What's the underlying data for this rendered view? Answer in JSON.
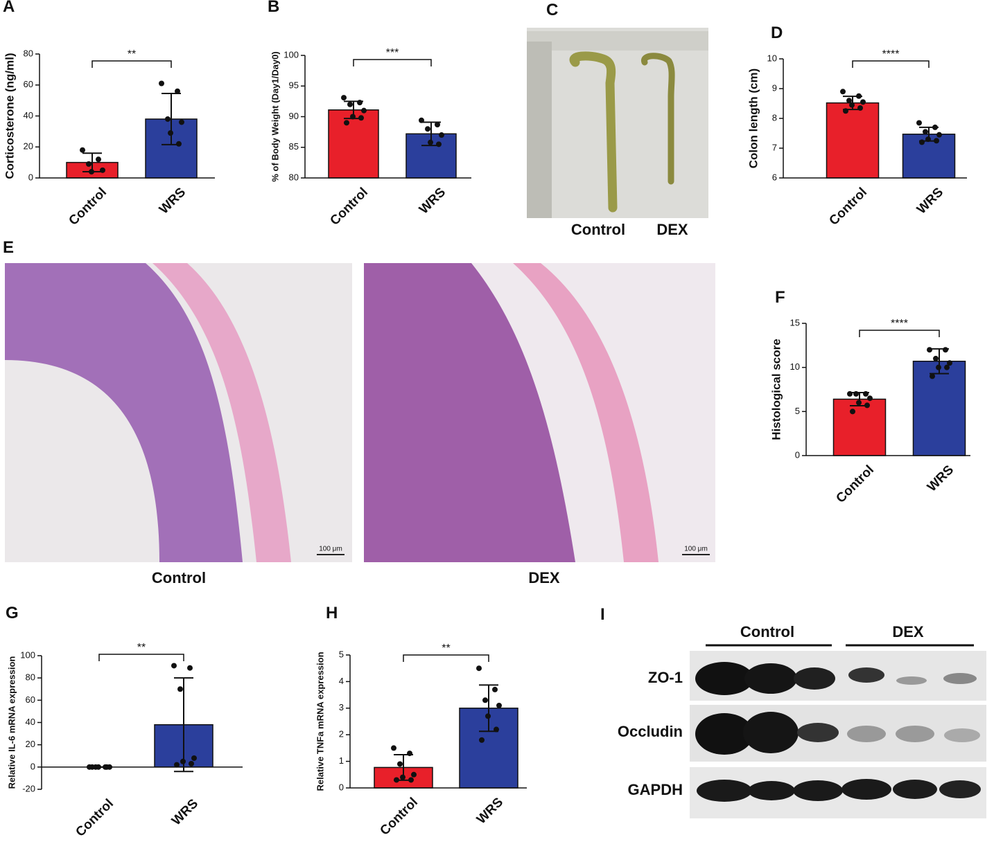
{
  "chart_data": [
    {
      "type": "bar",
      "panel": "A",
      "ylabel": "Corticosterone (ng/ml)",
      "categories": [
        "Control",
        "WRS"
      ],
      "values": [
        10,
        38
      ],
      "errors": [
        6,
        16.5
      ],
      "points": [
        [
          18,
          12,
          9,
          5,
          4
        ],
        [
          61,
          56,
          38,
          36,
          29,
          22
        ]
      ],
      "colors": [
        "#e8202a",
        "#2b3f9c"
      ],
      "annotation": "**",
      "ylim": [
        0,
        80
      ],
      "yticks": [
        0,
        20,
        40,
        60,
        80
      ]
    },
    {
      "type": "bar",
      "panel": "B",
      "ylabel": "% of Body Weight (Day1/Day0)",
      "categories": [
        "Control",
        "WRS"
      ],
      "values": [
        91.1,
        87.2
      ],
      "errors": [
        1.4,
        1.9
      ],
      "points": [
        [
          93.1,
          92.3,
          92,
          91,
          90,
          89.8,
          89
        ],
        [
          89.4,
          88.7,
          88,
          87,
          85.8,
          85.5
        ]
      ],
      "colors": [
        "#e8202a",
        "#2b3f9c"
      ],
      "annotation": "***",
      "ylim": [
        80,
        100
      ],
      "yticks": [
        80,
        85,
        90,
        95,
        100
      ]
    },
    {
      "type": "bar",
      "panel": "D",
      "ylabel": "Colon length (cm)",
      "categories": [
        "Control",
        "WRS"
      ],
      "values": [
        8.52,
        7.47
      ],
      "errors": [
        0.22,
        0.23
      ],
      "points": [
        [
          8.9,
          8.75,
          8.6,
          8.55,
          8.45,
          8.35,
          8.25
        ],
        [
          7.85,
          7.7,
          7.55,
          7.45,
          7.3,
          7.25,
          7.2
        ]
      ],
      "colors": [
        "#e8202a",
        "#2b3f9c"
      ],
      "annotation": "****",
      "ylim": [
        6,
        10
      ],
      "yticks": [
        6,
        7,
        8,
        9,
        10
      ]
    },
    {
      "type": "bar",
      "panel": "F",
      "ylabel": "Histological score",
      "categories": [
        "Control",
        "WRS"
      ],
      "values": [
        6.4,
        10.7
      ],
      "errors": [
        0.75,
        1.4
      ],
      "points": [
        [
          7,
          7,
          7,
          6.5,
          6,
          5.7,
          5
        ],
        [
          12,
          12,
          11,
          10.5,
          10,
          10,
          9
        ]
      ],
      "colors": [
        "#e8202a",
        "#2b3f9c"
      ],
      "annotation": "****",
      "ylim": [
        0,
        15
      ],
      "yticks": [
        0,
        5,
        10,
        15
      ]
    },
    {
      "type": "bar",
      "panel": "G",
      "ylabel": "Relative IL-6 mRNA expression",
      "categories": [
        "Control",
        "WRS"
      ],
      "values": [
        0,
        38
      ],
      "errors": [
        0,
        42
      ],
      "points": [
        [
          0,
          0,
          0,
          0,
          0,
          0,
          0
        ],
        [
          91,
          89,
          70,
          8,
          5,
          3,
          2
        ]
      ],
      "colors": [
        "#e8202a",
        "#2b3f9c"
      ],
      "annotation": "**",
      "ylim": [
        -20,
        100
      ],
      "yticks": [
        -20,
        0,
        20,
        40,
        60,
        80,
        100
      ]
    },
    {
      "type": "bar",
      "panel": "H",
      "ylabel": "Relative TNFa mRNA expression",
      "categories": [
        "Control",
        "WRS"
      ],
      "values": [
        0.77,
        3.0
      ],
      "errors": [
        0.48,
        0.87
      ],
      "points": [
        [
          1.5,
          1.3,
          0.9,
          0.5,
          0.4,
          0.3,
          0.3
        ],
        [
          4.5,
          3.7,
          3.3,
          3.1,
          2.7,
          2.2,
          1.8
        ]
      ],
      "colors": [
        "#e8202a",
        "#2b3f9c"
      ],
      "annotation": "**",
      "ylim": [
        0,
        5
      ],
      "yticks": [
        0,
        1,
        2,
        3,
        4,
        5
      ]
    }
  ],
  "photo": {
    "panel": "C",
    "labels": [
      "Control",
      "DEX"
    ]
  },
  "histology": {
    "panel": "E",
    "labels": [
      "Control",
      "DEX"
    ],
    "scale_bar": "100 μm"
  },
  "western_blot": {
    "panel": "I",
    "groups": [
      "Control",
      "DEX"
    ],
    "rows": [
      "ZO-1",
      "Occludin",
      "GAPDH"
    ]
  }
}
